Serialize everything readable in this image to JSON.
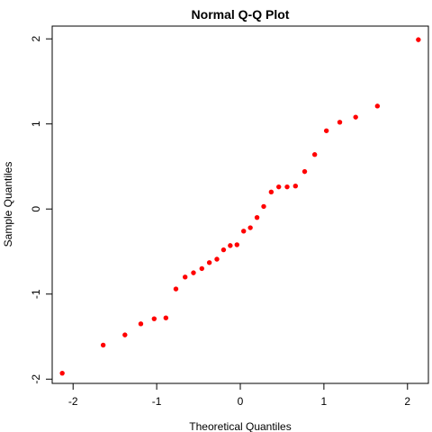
{
  "chart_data": {
    "type": "scatter",
    "title": "Normal Q-Q Plot",
    "xlabel": "Theoretical Quantiles",
    "ylabel": "Sample Quantiles",
    "xlim": [
      -2.25,
      2.25
    ],
    "ylim": [
      -2.05,
      2.15
    ],
    "xticks": [
      -2,
      -1,
      0,
      1,
      2
    ],
    "yticks": [
      -2,
      -1,
      0,
      1,
      2
    ],
    "xtick_labels": [
      "-2",
      "-1",
      "0",
      "1",
      "2"
    ],
    "ytick_labels": [
      "-2",
      "-1",
      "0",
      "1",
      "2"
    ],
    "grid": false,
    "point_color": "#ff0000",
    "series": [
      {
        "points": [
          {
            "x": -2.13,
            "y": -1.93
          },
          {
            "x": -1.64,
            "y": -1.6
          },
          {
            "x": -1.38,
            "y": -1.48
          },
          {
            "x": -1.19,
            "y": -1.35
          },
          {
            "x": -1.03,
            "y": -1.29
          },
          {
            "x": -0.89,
            "y": -1.28
          },
          {
            "x": -0.77,
            "y": -0.94
          },
          {
            "x": -0.66,
            "y": -0.8
          },
          {
            "x": -0.56,
            "y": -0.75
          },
          {
            "x": -0.46,
            "y": -0.7
          },
          {
            "x": -0.37,
            "y": -0.63
          },
          {
            "x": -0.28,
            "y": -0.59
          },
          {
            "x": -0.2,
            "y": -0.48
          },
          {
            "x": -0.12,
            "y": -0.43
          },
          {
            "x": -0.04,
            "y": -0.42
          },
          {
            "x": 0.04,
            "y": -0.26
          },
          {
            "x": 0.12,
            "y": -0.22
          },
          {
            "x": 0.2,
            "y": -0.1
          },
          {
            "x": 0.28,
            "y": 0.03
          },
          {
            "x": 0.37,
            "y": 0.2
          },
          {
            "x": 0.46,
            "y": 0.26
          },
          {
            "x": 0.56,
            "y": 0.26
          },
          {
            "x": 0.66,
            "y": 0.27
          },
          {
            "x": 0.77,
            "y": 0.44
          },
          {
            "x": 0.89,
            "y": 0.64
          },
          {
            "x": 1.03,
            "y": 0.92
          },
          {
            "x": 1.19,
            "y": 1.02
          },
          {
            "x": 1.38,
            "y": 1.08
          },
          {
            "x": 1.64,
            "y": 1.21
          },
          {
            "x": 2.13,
            "y": 1.99
          }
        ]
      }
    ]
  }
}
